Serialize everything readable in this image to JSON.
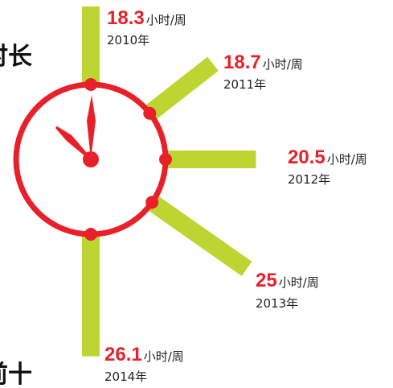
{
  "chart_data": {
    "type": "radial_bar",
    "categories": [
      "2010年",
      "2011年",
      "2012年",
      "2013年",
      "2014年"
    ],
    "values": [
      18.3,
      18.7,
      20.5,
      25,
      26.1
    ],
    "unit": "小时/周",
    "color": "#bcd530",
    "side_texts": [
      "时长",
      "前十"
    ]
  }
}
